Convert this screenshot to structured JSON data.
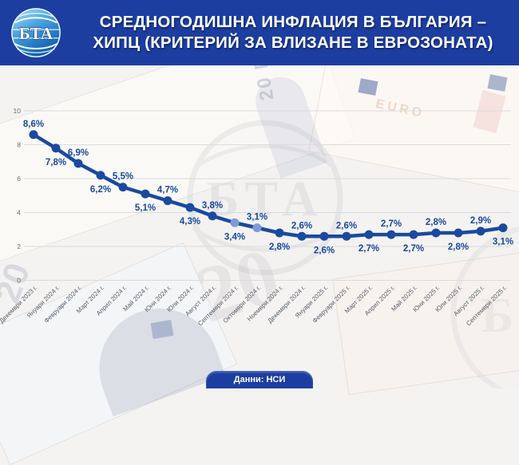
{
  "header": {
    "title_line1": "СРЕДНОГОДИШНА ИНФЛАЦИЯ В БЪЛГАРИЯ –",
    "title_line2": "ХИПЦ (КРИТЕРИЙ ЗА ВЛИЗАНЕ В ЕВРОЗОНАТА)",
    "logo_text": "БТА"
  },
  "footer": {
    "source_label": "Данни: НСИ"
  },
  "watermark_text": "БТА",
  "background": {
    "banknote_text_vertical": "20 EURO",
    "banknote_text_euro": "EURO",
    "banknote_number_big": "20",
    "banknote_number_side": "20"
  },
  "colors": {
    "header_bg": "#1d3ea1",
    "footer_bg": "#1d3ea1",
    "line": "#1a4aa0",
    "marker_light": "#7d9bd5",
    "label_text": "#17499e"
  },
  "chart_data": {
    "type": "line",
    "title": "Средногодишна инфлация в България – ХИПЦ (критерий за влизане в еврозоната)",
    "xlabel": "",
    "ylabel": "",
    "ylim": [
      0,
      10
    ],
    "yticks": [
      0,
      2,
      4,
      6,
      8,
      10
    ],
    "grid": true,
    "legend_position": "none",
    "categories": [
      "Декември 2023 г.",
      "Януари 2024 г.",
      "Февруари 2024 г.",
      "Март 2024 г.",
      "Април 2024 г.",
      "Май 2024 г.",
      "Юни 2024 г.",
      "Юли 2024 г.",
      "Август 2024 г.",
      "Септември 2024 г.",
      "Октомври 2024 г.",
      "Ноември 2024 г.",
      "Декември 2024 г.",
      "Януари 2025 г.",
      "Февруари 2025 г.",
      "Март 2025 г.",
      "Април 2025 г.",
      "Май 2025 г.",
      "Юни 2025 г.",
      "Юли 2025 г.",
      "Август 2025 г.",
      "Септември 2025 г."
    ],
    "values": [
      8.6,
      7.8,
      6.9,
      6.2,
      5.5,
      5.1,
      4.7,
      4.3,
      3.8,
      3.4,
      3.1,
      2.8,
      2.6,
      2.6,
      2.6,
      2.7,
      2.7,
      2.7,
      2.8,
      2.8,
      2.9,
      3.1
    ],
    "point_labels": [
      "8,6%",
      "7,8%",
      "6,9%",
      "6,2%",
      "5,5%",
      "5,1%",
      "4,7%",
      "4,3%",
      "3,8%",
      "3,4%",
      "3,1%",
      "2,8%",
      "2,6%",
      "2,6%",
      "2,6%",
      "2,7%",
      "2,7%",
      "2,7%",
      "2,8%",
      "2,8%",
      "2,9%",
      "3,1%"
    ],
    "light_point_indexes": [
      9,
      10
    ]
  }
}
